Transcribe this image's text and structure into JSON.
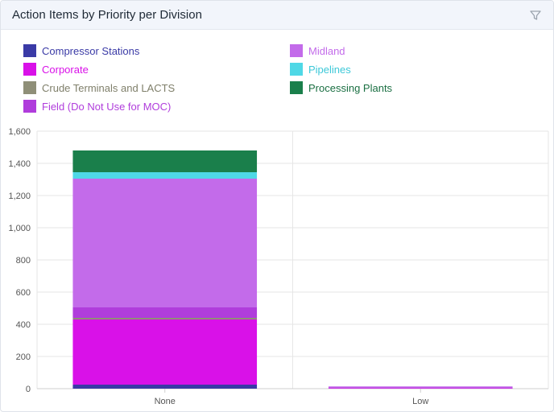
{
  "card": {
    "title": "Action Items by Priority per Division",
    "filter_icon": "filter-icon"
  },
  "legend": [
    {
      "label": "Compressor Stations",
      "color": "#3a3aa6",
      "text_color": "#3a3aa6"
    },
    {
      "label": "Midland",
      "color": "#c36bea",
      "text_color": "#c36bea"
    },
    {
      "label": "Corporate",
      "color": "#d911e8",
      "text_color": "#d911e8"
    },
    {
      "label": "Pipelines",
      "color": "#4fd8e6",
      "text_color": "#3cc8d8"
    },
    {
      "label": "Crude Terminals and LACTS",
      "color": "#8f8f78",
      "text_color": "#7f7f6a"
    },
    {
      "label": "Processing Plants",
      "color": "#1a7f4b",
      "text_color": "#1a6f42"
    },
    {
      "label": "Field (Do Not Use for MOC)",
      "color": "#b03ddc",
      "text_color": "#b03ddc"
    }
  ],
  "chart_data": {
    "type": "bar",
    "stacked": true,
    "categories": [
      "None",
      "Low"
    ],
    "ylim": [
      0,
      1600
    ],
    "yticks": [
      "0",
      "200",
      "400",
      "600",
      "800",
      "1,000",
      "1,200",
      "1,400",
      "1,600"
    ],
    "grid": true,
    "legend_position": "top",
    "series": [
      {
        "name": "Compressor Stations",
        "color": "#3a3aa6",
        "values": [
          25,
          0
        ]
      },
      {
        "name": "Corporate",
        "color": "#d911e8",
        "values": [
          405,
          3
        ]
      },
      {
        "name": "Crude Terminals and LACTS",
        "color": "#8f8f78",
        "values": [
          10,
          0
        ]
      },
      {
        "name": "Field (Do Not Use for MOC)",
        "color": "#b03ddc",
        "values": [
          65,
          5
        ]
      },
      {
        "name": "Midland",
        "color": "#c36bea",
        "values": [
          800,
          6
        ]
      },
      {
        "name": "Pipelines",
        "color": "#4fd8e6",
        "values": [
          40,
          0
        ]
      },
      {
        "name": "Processing Plants",
        "color": "#1a7f4b",
        "values": [
          135,
          0
        ]
      }
    ]
  }
}
